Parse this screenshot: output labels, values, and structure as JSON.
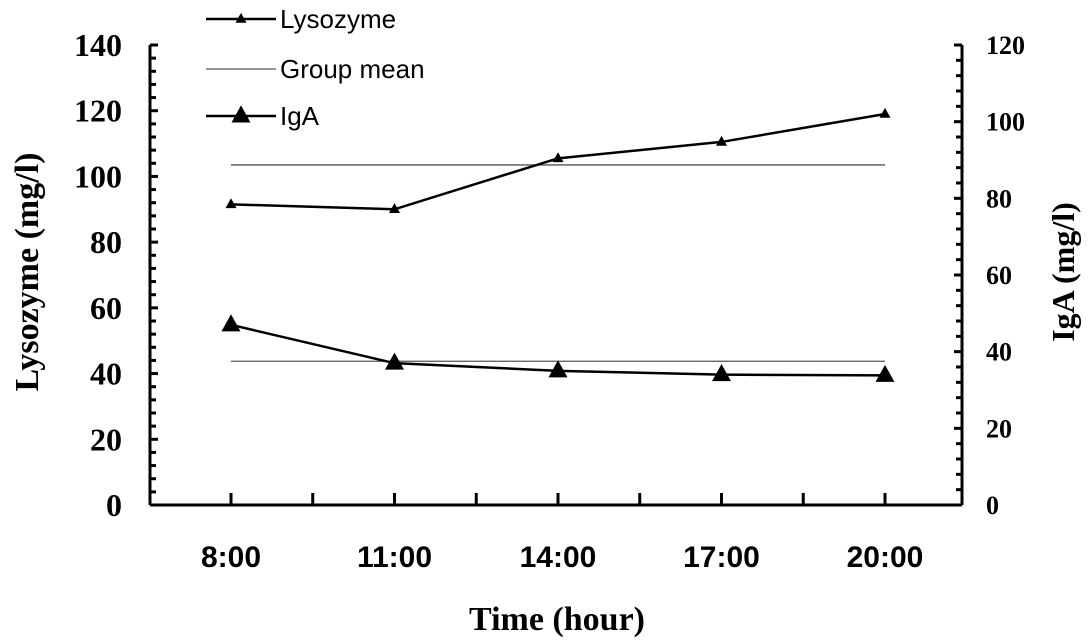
{
  "chart_data": {
    "type": "line",
    "categories": [
      "8:00",
      "11:00",
      "14:00",
      "17:00",
      "20:00"
    ],
    "xlabel": "Time (hour)",
    "ylabel_left": "Lysozyme (mg/l)",
    "ylabel_right": "IgA (mg/l)",
    "ylim_left": [
      0,
      140
    ],
    "ylim_right": [
      0,
      120
    ],
    "yticks_left": [
      "0",
      "20",
      "40",
      "60",
      "80",
      "100",
      "120",
      "140"
    ],
    "yticks_right": [
      "0",
      "20",
      "40",
      "60",
      "80",
      "100",
      "120"
    ],
    "grid": false,
    "legend_position": "top-left",
    "series": [
      {
        "name": "Lysozyme",
        "axis": "left",
        "marker": "small-triangle",
        "values": [
          91.5,
          90,
          105.5,
          110.5,
          119
        ]
      },
      {
        "name": "IgA",
        "axis": "right",
        "marker": "large-triangle",
        "values": [
          47,
          37,
          35,
          34,
          33.8
        ]
      }
    ],
    "reference_lines": [
      {
        "name": "Group mean",
        "axis": "left",
        "value": 103.5
      },
      {
        "name": "Group mean",
        "axis": "right",
        "value": 37.5
      }
    ],
    "legend": [
      "Lysozyme",
      "Group mean",
      "IgA"
    ]
  }
}
